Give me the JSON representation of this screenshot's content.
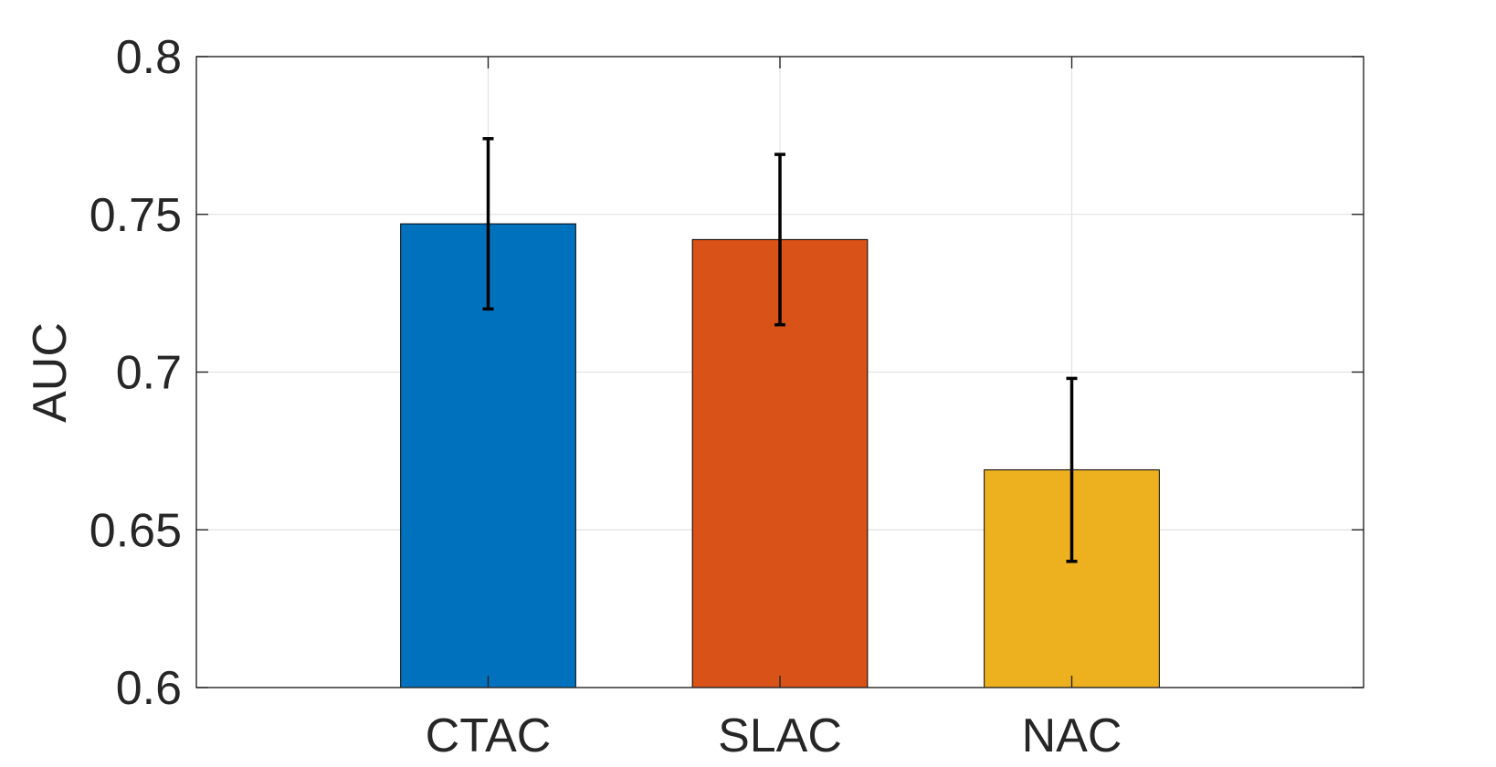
{
  "chart_data": {
    "type": "bar",
    "title": "",
    "xlabel": "",
    "ylabel": "AUC",
    "categories": [
      "CTAC",
      "SLAC",
      "NAC"
    ],
    "values": [
      0.747,
      0.742,
      0.669
    ],
    "error_low": [
      0.72,
      0.715,
      0.64
    ],
    "error_high": [
      0.774,
      0.769,
      0.698
    ],
    "bar_colors": [
      "#0072BD",
      "#D95319",
      "#EDB120"
    ],
    "ylim": [
      0.6,
      0.8
    ],
    "xlim": [
      0,
      4
    ],
    "yticks": [
      0.6,
      0.65,
      0.7,
      0.75,
      0.8
    ],
    "ytick_labels": [
      "0.6",
      "0.65",
      "0.7",
      "0.75",
      "0.8"
    ],
    "grid": true,
    "legend": "none"
  }
}
